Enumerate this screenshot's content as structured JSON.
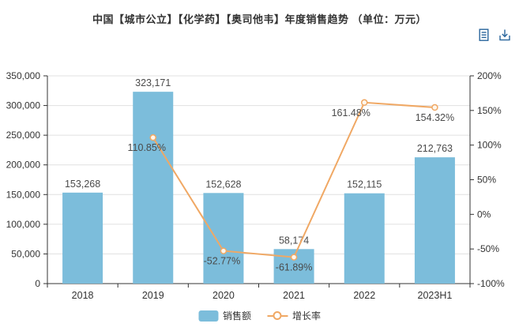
{
  "title": "中国【城市公立】【化学药】【奥司他韦】年度销售趋势 （单位：万元）",
  "toolbox": {
    "icons": [
      {
        "name": "data-view",
        "color": "#2a669c"
      },
      {
        "name": "download",
        "color": "#2a669c"
      }
    ]
  },
  "chart_data": {
    "type": "bar",
    "categories": [
      "2018",
      "2019",
      "2020",
      "2021",
      "2022",
      "2023H1"
    ],
    "series": [
      {
        "name": "销售额",
        "type": "bar",
        "values": [
          153268,
          323171,
          152628,
          58174,
          152115,
          212763
        ],
        "labels": [
          "153,268",
          "323,171",
          "152,628",
          "58,174",
          "152,115",
          "212,763"
        ],
        "color": "#7cbddb",
        "axis": "left"
      },
      {
        "name": "增长率",
        "type": "line",
        "values": [
          null,
          110.85,
          -52.77,
          -61.89,
          161.48,
          154.32
        ],
        "labels": [
          null,
          "110.85%",
          "-52.77%",
          "-61.89%",
          "161.48%",
          "154.32%"
        ],
        "color": "#f0a864",
        "marker_fill": "#fdf6ec",
        "axis": "right",
        "label_dx": [
          0,
          -8,
          -2,
          0,
          -17,
          0
        ]
      }
    ],
    "left_axis": {
      "min": 0,
      "max": 350000,
      "step": 50000,
      "tick_labels": [
        "0",
        "50,000",
        "100,000",
        "150,000",
        "200,000",
        "250,000",
        "300,000",
        "350,000"
      ]
    },
    "right_axis": {
      "min": -100,
      "max": 200,
      "step": 50,
      "tick_labels": [
        "-100%",
        "-50%",
        "0%",
        "50%",
        "100%",
        "150%",
        "200%"
      ]
    },
    "legend": [
      "销售额",
      "增长率"
    ],
    "legend_position": "bottom",
    "grid": true,
    "grid_color": "#e0e0e0",
    "axis_line_color": "#333333",
    "axis_label_color": "#333333",
    "data_label_color": "#4a4a4a"
  }
}
